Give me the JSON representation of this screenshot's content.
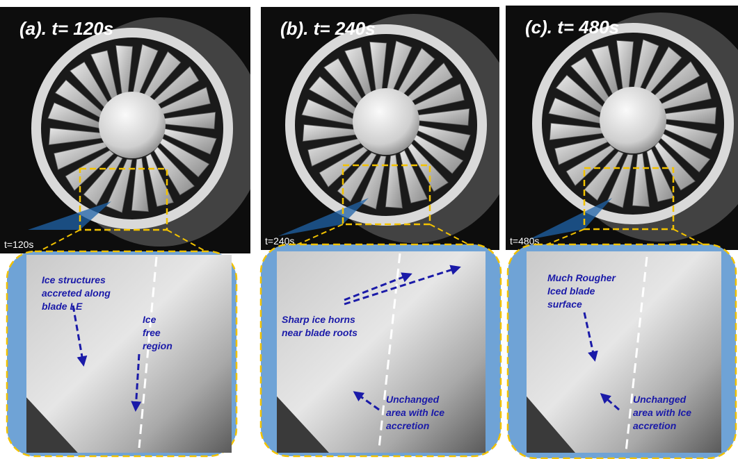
{
  "panels": [
    {
      "title": "(a). t= 120s",
      "timestamp": "t=120s",
      "annotations": [
        {
          "lines": [
            "Ice structures",
            "accreted along",
            "blade LE"
          ]
        },
        {
          "lines": [
            "Ice",
            "free",
            "region"
          ]
        }
      ]
    },
    {
      "title": "(b). t= 240s",
      "timestamp": "t=240s",
      "annotations": [
        {
          "lines": [
            "Sharp ice horns",
            "near blade roots"
          ]
        },
        {
          "lines": [
            "Unchanged",
            "area with Ice",
            "accretion"
          ]
        }
      ]
    },
    {
      "title": "(c). t= 480s",
      "timestamp": "t=480s",
      "annotations": [
        {
          "lines": [
            "Much Rougher",
            "Iced blade",
            "surface"
          ]
        },
        {
          "lines": [
            "Unchanged",
            "area with Ice",
            "accretion"
          ]
        }
      ]
    }
  ]
}
